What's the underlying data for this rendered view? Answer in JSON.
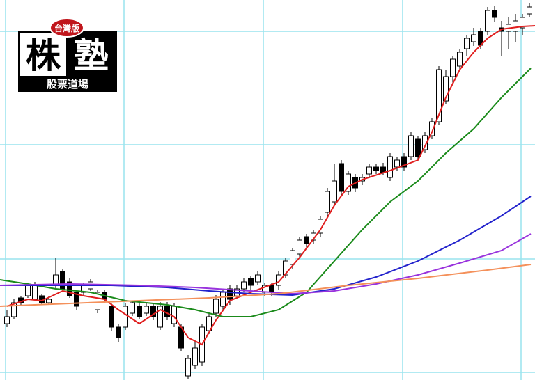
{
  "logo": {
    "badge": "台灣版",
    "left": "株",
    "right": "塾",
    "bottom": "股票道場"
  },
  "chart_data": {
    "type": "candlestick",
    "xlim": [
      -1,
      75.8
    ],
    "ylim": [
      0,
      546
    ],
    "xticks": [
      -0.2,
      16.8,
      36.8,
      56.8,
      73.8
    ],
    "yticks": [
      11,
      174,
      338,
      501
    ],
    "grid": true,
    "up_color": "#ffffff",
    "down_color": "#000000",
    "ohlc": [
      [
        81,
        101,
        76,
        91
      ],
      [
        91,
        116,
        88,
        111
      ],
      [
        118,
        121,
        108,
        111
      ],
      [
        121,
        140,
        118,
        136
      ],
      [
        116,
        141,
        113,
        136
      ],
      [
        121,
        124,
        108,
        111
      ],
      [
        111,
        120,
        108,
        116
      ],
      [
        136,
        176,
        130,
        151
      ],
      [
        156,
        160,
        126,
        131
      ],
      [
        141,
        146,
        118,
        121
      ],
      [
        126,
        130,
        100,
        106
      ],
      [
        126,
        140,
        122,
        136
      ],
      [
        131,
        145,
        128,
        141
      ],
      [
        101,
        130,
        96,
        126
      ],
      [
        126,
        130,
        110,
        116
      ],
      [
        106,
        110,
        70,
        76
      ],
      [
        76,
        80,
        55,
        61
      ],
      [
        76,
        110,
        72,
        106
      ],
      [
        96,
        114,
        92,
        111
      ],
      [
        106,
        110,
        88,
        91
      ],
      [
        96,
        110,
        92,
        106
      ],
      [
        106,
        110,
        86,
        91
      ],
      [
        76,
        112,
        72,
        106
      ],
      [
        106,
        112,
        86,
        91
      ],
      [
        81,
        110,
        76,
        106
      ],
      [
        76,
        80,
        42,
        46
      ],
      [
        6,
        36,
        2,
        31
      ],
      [
        21,
        56,
        16,
        46
      ],
      [
        26,
        80,
        20,
        76
      ],
      [
        71,
        96,
        66,
        91
      ],
      [
        96,
        122,
        90,
        116
      ],
      [
        106,
        130,
        100,
        126
      ],
      [
        131,
        136,
        108,
        116
      ],
      [
        121,
        136,
        116,
        131
      ],
      [
        131,
        146,
        126,
        141
      ],
      [
        146,
        150,
        130,
        136
      ],
      [
        141,
        156,
        136,
        151
      ],
      [
        126,
        140,
        120,
        136
      ],
      [
        136,
        140,
        120,
        126
      ],
      [
        136,
        156,
        130,
        151
      ],
      [
        151,
        176,
        146,
        171
      ],
      [
        166,
        190,
        160,
        186
      ],
      [
        181,
        206,
        176,
        201
      ],
      [
        206,
        210,
        190,
        196
      ],
      [
        201,
        216,
        196,
        211
      ],
      [
        211,
        236,
        206,
        231
      ],
      [
        241,
        276,
        236,
        271
      ],
      [
        256,
        311,
        250,
        286
      ],
      [
        311,
        316,
        266,
        271
      ],
      [
        271,
        301,
        266,
        296
      ],
      [
        291,
        296,
        270,
        276
      ],
      [
        286,
        296,
        280,
        291
      ],
      [
        296,
        310,
        290,
        306
      ],
      [
        306,
        310,
        296,
        301
      ],
      [
        306,
        312,
        294,
        298
      ],
      [
        291,
        326,
        286,
        321
      ],
      [
        306,
        320,
        300,
        316
      ],
      [
        321,
        326,
        300,
        306
      ],
      [
        321,
        356,
        316,
        351
      ],
      [
        346,
        350,
        316,
        321
      ],
      [
        331,
        356,
        326,
        351
      ],
      [
        351,
        376,
        346,
        371
      ],
      [
        371,
        451,
        366,
        446
      ],
      [
        401,
        446,
        396,
        436
      ],
      [
        436,
        466,
        426,
        461
      ],
      [
        451,
        476,
        446,
        471
      ],
      [
        476,
        496,
        466,
        491
      ],
      [
        486,
        506,
        480,
        496
      ],
      [
        501,
        506,
        476,
        481
      ],
      [
        501,
        536,
        496,
        531
      ],
      [
        531,
        538,
        514,
        521
      ],
      [
        506,
        516,
        466,
        501
      ],
      [
        501,
        521,
        476,
        511
      ],
      [
        501,
        526,
        486,
        516
      ],
      [
        506,
        526,
        496,
        521
      ],
      [
        526,
        541,
        521,
        536
      ]
    ],
    "series": [
      {
        "color": "#e01e1e",
        "x": [
          0,
          3,
          5,
          8,
          11,
          14,
          16,
          19,
          22,
          24,
          26,
          28,
          30,
          32,
          35,
          39,
          42,
          45,
          47,
          49,
          51,
          55,
          59,
          61,
          63,
          65,
          67,
          69,
          71,
          74,
          75.8
        ],
        "values": [
          106,
          116,
          114,
          128,
          121,
          116,
          101,
          81,
          101,
          91,
          61,
          51,
          86,
          114,
          126,
          141,
          176,
          216,
          251,
          278,
          288,
          301,
          316,
          356,
          406,
          446,
          471,
          491,
          504,
          508,
          509
        ]
      },
      {
        "color": "#1a8a1a",
        "x": [
          -1,
          3,
          7,
          12,
          17,
          23,
          27,
          31,
          35,
          39,
          43,
          47,
          51,
          55,
          59,
          63,
          67,
          71,
          75.2
        ],
        "values": [
          144,
          138,
          131,
          126,
          114,
          108,
          101,
          91,
          91,
          101,
          126,
          171,
          216,
          256,
          286,
          326,
          361,
          406,
          448
        ]
      },
      {
        "color": "#2222cc",
        "x": [
          -1,
          7,
          15,
          23,
          29,
          35,
          41,
          47,
          53,
          59,
          65,
          71,
          75.2
        ],
        "values": [
          136,
          136,
          136,
          133,
          128,
          124,
          122,
          131,
          148,
          171,
          201,
          236,
          264
        ]
      },
      {
        "color": "#9933dd",
        "x": [
          -1,
          9,
          19,
          27,
          35,
          41,
          47,
          53,
          59,
          65,
          71,
          75.2
        ],
        "values": [
          136,
          138,
          136,
          133,
          128,
          124,
          128,
          138,
          151,
          168,
          186,
          210
        ]
      },
      {
        "color": "#f4905a",
        "x": [
          -1,
          9,
          19,
          29,
          39,
          49,
          59,
          69,
          75.2
        ],
        "values": [
          106,
          110,
          114,
          118,
          124,
          136,
          146,
          158,
          166
        ]
      }
    ]
  }
}
